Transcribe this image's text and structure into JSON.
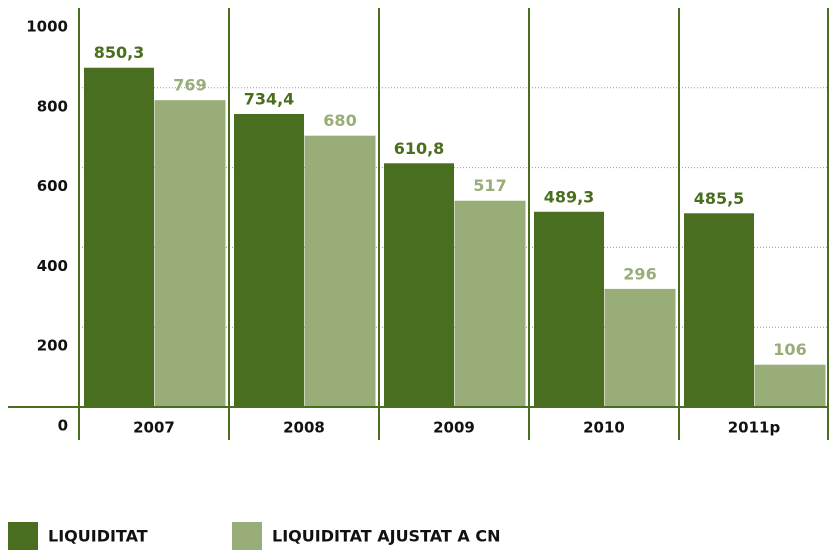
{
  "chart_data": {
    "type": "bar",
    "categories": [
      "2007",
      "2008",
      "2009",
      "2010",
      "2011p"
    ],
    "series": [
      {
        "name": "LIQUIDITAT",
        "color": "#4a6e1f",
        "values": [
          850.3,
          734.4,
          610.8,
          489.3,
          485.5
        ],
        "value_labels": [
          "850,3",
          "734,4",
          "610,8",
          "489,3",
          "485,5"
        ]
      },
      {
        "name": "LIQUIDITAT AJUSTAT A CN",
        "color": "#98ad78",
        "values": [
          769,
          680,
          517,
          296,
          106
        ],
        "value_labels": [
          "769",
          "680",
          "517",
          "296",
          "106"
        ]
      }
    ],
    "ylim": [
      0,
      1000
    ],
    "yticks": [
      0,
      200,
      400,
      600,
      800,
      1000
    ],
    "grid": true,
    "legend": "bottom"
  }
}
